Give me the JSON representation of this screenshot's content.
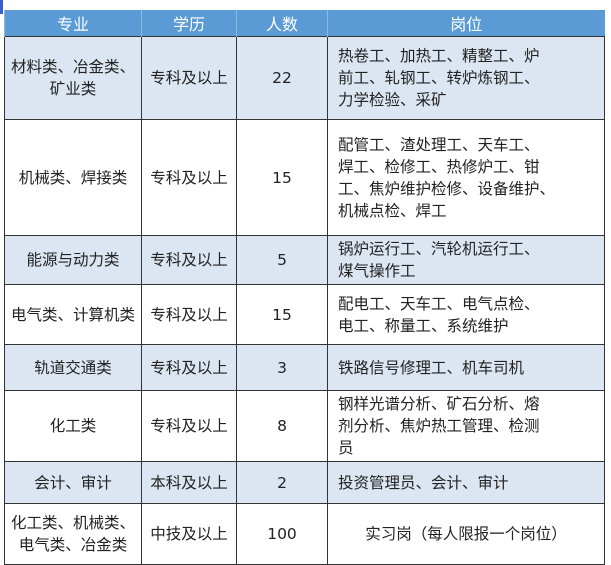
{
  "headers": [
    "专业",
    "学历",
    "人数",
    "岗位"
  ],
  "rows": [
    {
      "major": [
        "材料类、冶金类、",
        "矿业类"
      ],
      "edu": "专科及以上",
      "count": "22",
      "pos": [
        "热卷工、加热工、精整工、炉",
        "前工、轧钢工、转炉炼钢工、",
        "力学检验、采矿"
      ]
    },
    {
      "major": [
        "机械类、焊接类"
      ],
      "edu": "专科及以上",
      "count": "15",
      "pos": [
        "配管工、渣处理工、天车工、",
        "焊工、检修工、热修炉工、钳",
        "工、焦炉维护检修、设备维护、",
        "机械点检、焊工"
      ]
    },
    {
      "major": [
        "能源与动力类"
      ],
      "edu": "专科及以上",
      "count": "5",
      "pos": [
        "锅炉运行工、汽轮机运行工、",
        "煤气操作工"
      ]
    },
    {
      "major": [
        "电气类、计算机类"
      ],
      "edu": "专科及以上",
      "count": "15",
      "pos": [
        "配电工、天车工、电气点检、",
        "电工、称量工、系统维护"
      ]
    },
    {
      "major": [
        "轨道交通类"
      ],
      "edu": "专科及以上",
      "count": "3",
      "pos": [
        "铁路信号修理工、机车司机"
      ]
    },
    {
      "major": [
        "化工类"
      ],
      "edu": "专科及以上",
      "count": "8",
      "pos": [
        "钢样光谱分析、矿石分析、熔",
        "剂分析、焦炉热工管理、检测",
        "员"
      ]
    },
    {
      "major": [
        "会计、审计"
      ],
      "edu": "本科及以上",
      "count": "2",
      "pos": [
        "投资管理员、会计、审计"
      ]
    },
    {
      "major": [
        "化工类、机械类、",
        "电气类、冶金类"
      ],
      "edu": "中技及以上",
      "count": "100",
      "pos": [
        "实习岗（每人限报一个岗位）"
      ]
    }
  ],
  "colors": {
    "header": "#5b9bd5",
    "band": "#dce6f2"
  }
}
